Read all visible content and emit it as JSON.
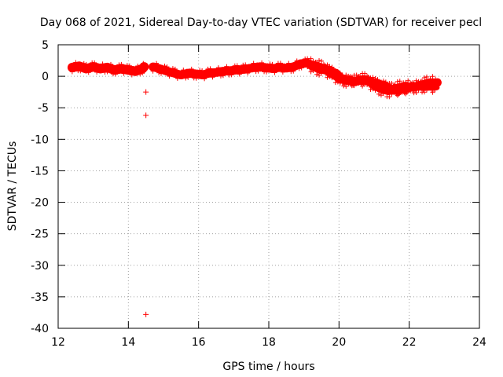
{
  "chart_data": {
    "type": "scatter",
    "title": "Day 068 of 2021, Sidereal Day-to-day VTEC variation (SDTVAR) for receiver pecl",
    "xlabel": "GPS time / hours",
    "ylabel": "SDTVAR / TECUs",
    "xlim": [
      12,
      24
    ],
    "ylim": [
      -40,
      5
    ],
    "grid": true,
    "x_ticks": [
      12,
      14,
      16,
      18,
      20,
      22,
      24
    ],
    "y_ticks": [
      5,
      0,
      -5,
      -10,
      -15,
      -20,
      -25,
      -30,
      -35,
      -40
    ],
    "marker": "+",
    "color": "#ff0000",
    "series": [
      {
        "name": "SDTVAR",
        "band_center": [
          [
            12.4,
            1.4
          ],
          [
            12.6,
            1.6
          ],
          [
            12.8,
            1.2
          ],
          [
            13.0,
            1.5
          ],
          [
            13.2,
            1.2
          ],
          [
            13.4,
            1.4
          ],
          [
            13.6,
            1.0
          ],
          [
            13.8,
            1.2
          ],
          [
            14.0,
            1.0
          ],
          [
            14.2,
            0.8
          ],
          [
            14.4,
            1.2
          ],
          [
            14.45,
            1.5
          ]
        ],
        "band_center_2": [
          [
            14.7,
            1.5
          ],
          [
            14.9,
            1.2
          ],
          [
            15.1,
            0.8
          ],
          [
            15.3,
            0.5
          ],
          [
            15.5,
            0.2
          ],
          [
            15.7,
            0.5
          ],
          [
            15.9,
            0.4
          ],
          [
            16.1,
            0.2
          ],
          [
            16.3,
            0.5
          ],
          [
            16.5,
            0.6
          ],
          [
            16.7,
            0.8
          ],
          [
            16.9,
            0.9
          ],
          [
            17.1,
            1.0
          ],
          [
            17.3,
            1.1
          ],
          [
            17.5,
            1.3
          ],
          [
            17.7,
            1.5
          ],
          [
            17.9,
            1.4
          ],
          [
            18.1,
            1.2
          ],
          [
            18.3,
            1.4
          ],
          [
            18.5,
            1.3
          ],
          [
            18.7,
            1.5
          ],
          [
            18.9,
            2.0
          ],
          [
            19.1,
            2.1
          ],
          [
            19.3,
            1.6
          ],
          [
            19.5,
            1.3
          ],
          [
            19.7,
            1.0
          ],
          [
            19.9,
            0.5
          ],
          [
            20.1,
            -0.5
          ],
          [
            20.3,
            -0.7
          ],
          [
            20.5,
            -0.8
          ],
          [
            20.7,
            -0.5
          ],
          [
            20.9,
            -0.8
          ],
          [
            21.1,
            -1.2
          ],
          [
            21.3,
            -1.5
          ],
          [
            21.5,
            -2.1
          ],
          [
            21.7,
            -2.2
          ],
          [
            21.9,
            -1.9
          ],
          [
            22.1,
            -1.7
          ],
          [
            22.3,
            -1.5
          ],
          [
            22.5,
            -1.6
          ],
          [
            22.7,
            -1.4
          ],
          [
            22.8,
            -1.0
          ]
        ],
        "band_upper_branch": [
          [
            19.1,
            2.2
          ],
          [
            19.3,
            2.0
          ],
          [
            19.5,
            1.7
          ],
          [
            19.7,
            1.0
          ],
          [
            19.9,
            0.3
          ],
          [
            20.1,
            -0.4
          ],
          [
            20.3,
            -0.6
          ],
          [
            20.5,
            -0.5
          ],
          [
            20.7,
            -0.2
          ],
          [
            20.9,
            -0.6
          ],
          [
            21.1,
            -1.4
          ],
          [
            21.3,
            -1.8
          ],
          [
            21.5,
            -1.8
          ],
          [
            21.7,
            -1.5
          ],
          [
            21.9,
            -1.3
          ],
          [
            22.1,
            -1.6
          ],
          [
            22.3,
            -1.2
          ],
          [
            22.5,
            -0.8
          ],
          [
            22.7,
            -0.7
          ]
        ],
        "band_lower_branch": [
          [
            19.2,
            1.4
          ],
          [
            19.4,
            0.9
          ],
          [
            19.6,
            0.7
          ],
          [
            19.8,
            0.1
          ],
          [
            20.0,
            -0.7
          ],
          [
            20.2,
            -0.9
          ],
          [
            20.4,
            -0.8
          ],
          [
            20.6,
            -0.8
          ],
          [
            20.8,
            -1.0
          ],
          [
            21.0,
            -1.8
          ],
          [
            21.2,
            -2.3
          ],
          [
            21.4,
            -2.6
          ],
          [
            21.6,
            -2.4
          ],
          [
            21.8,
            -2.2
          ],
          [
            22.0,
            -2.0
          ],
          [
            22.2,
            -1.9
          ],
          [
            22.4,
            -1.8
          ],
          [
            22.6,
            -1.9
          ],
          [
            22.8,
            -1.8
          ]
        ],
        "outliers": [
          [
            14.5,
            -2.5
          ],
          [
            14.5,
            -6.2
          ],
          [
            14.5,
            -37.8
          ]
        ]
      }
    ]
  }
}
